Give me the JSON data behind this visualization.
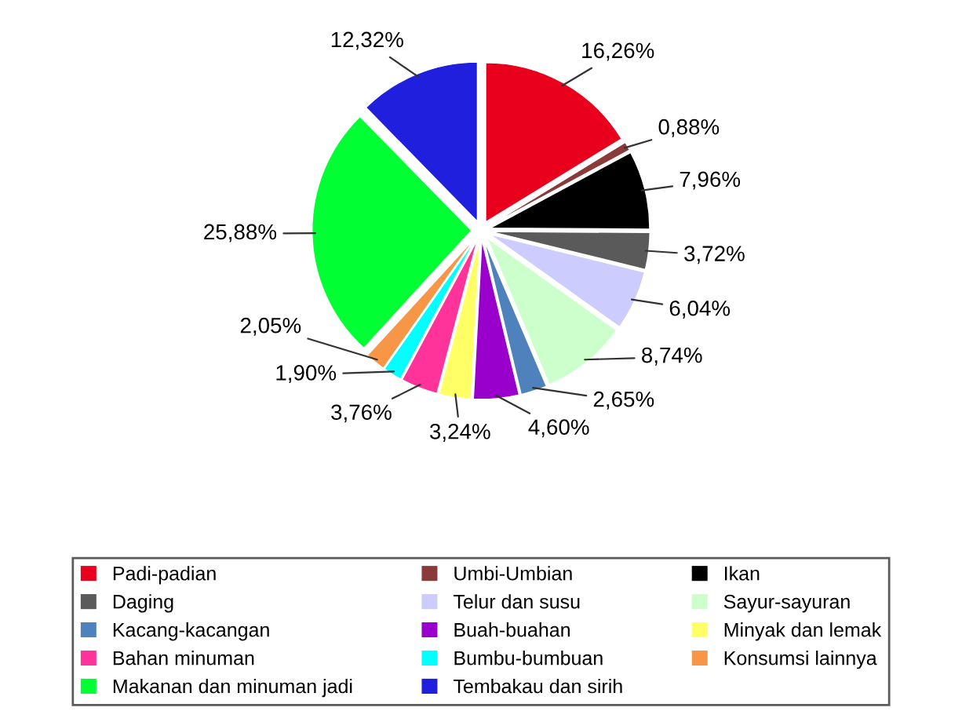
{
  "chart_data": {
    "type": "pie",
    "categories": [
      "Padi-padian",
      "Umbi-Umbian",
      "Ikan",
      "Daging",
      "Telur dan susu",
      "Sayur-sayuran",
      "Kacang-kacangan",
      "Buah-buahan",
      "Minyak dan lemak",
      "Bahan minuman",
      "Bumbu-bumbuan",
      "Konsumsi lainnya",
      "Makanan dan minuman jadi",
      "Tembakau dan sirih"
    ],
    "values": [
      16.26,
      0.88,
      7.96,
      3.72,
      6.04,
      8.74,
      2.65,
      4.6,
      3.24,
      3.76,
      1.9,
      2.05,
      25.88,
      12.32
    ],
    "value_labels": [
      "16,26%",
      "0,88%",
      "7,96%",
      "3,72%",
      "6,04%",
      "8,74%",
      "2,65%",
      "4,60%",
      "3,24%",
      "3,76%",
      "1,90%",
      "2,05%",
      "25,88%",
      "12,32%"
    ],
    "colors": [
      "#e8001c",
      "#8b3a3a",
      "#000000",
      "#5a5a5a",
      "#ccccff",
      "#ccffcc",
      "#4f81bd",
      "#9900cc",
      "#ffff66",
      "#ff3399",
      "#00ffff",
      "#f79646",
      "#00ff33",
      "#1f1fdd"
    ],
    "legend": "bottom"
  }
}
